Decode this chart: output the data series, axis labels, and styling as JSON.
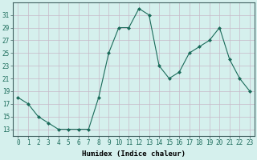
{
  "x": [
    0,
    1,
    2,
    3,
    4,
    5,
    6,
    7,
    8,
    9,
    10,
    11,
    12,
    13,
    14,
    15,
    16,
    17,
    18,
    19,
    20,
    21,
    22,
    23
  ],
  "y": [
    18,
    17,
    15,
    14,
    13,
    13,
    13,
    13,
    18,
    25,
    29,
    29,
    32,
    31,
    23,
    21,
    22,
    25,
    26,
    27,
    29,
    24,
    21,
    19
  ],
  "line_color": "#1a6b5a",
  "marker": "D",
  "marker_size": 2.0,
  "bg_color": "#d5f0ed",
  "grid_color": "#c8b8c8",
  "xlabel": "Humidex (Indice chaleur)",
  "xlim": [
    -0.5,
    23.5
  ],
  "ylim": [
    12,
    33
  ],
  "yticks": [
    13,
    15,
    17,
    19,
    21,
    23,
    25,
    27,
    29,
    31
  ],
  "xticks": [
    0,
    1,
    2,
    3,
    4,
    5,
    6,
    7,
    8,
    9,
    10,
    11,
    12,
    13,
    14,
    15,
    16,
    17,
    18,
    19,
    20,
    21,
    22,
    23
  ],
  "xlabel_fontsize": 6.5,
  "tick_fontsize": 5.5
}
